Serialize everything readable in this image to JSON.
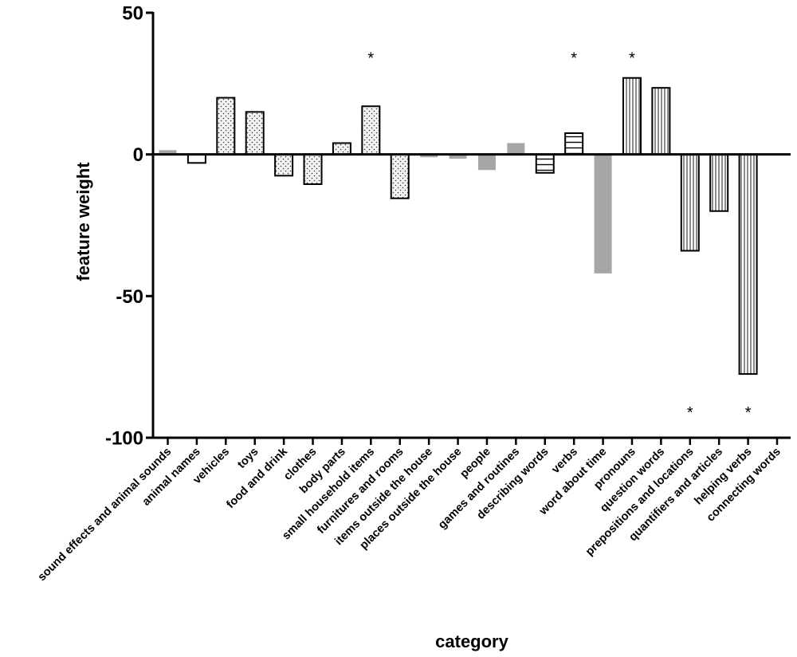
{
  "chart_data": {
    "type": "bar",
    "title": "",
    "xlabel": "category",
    "ylabel": "feature weight",
    "ylim": [
      -100,
      50
    ],
    "yticks": [
      50,
      0,
      -50,
      -100
    ],
    "ytick_labels": [
      "50",
      "0",
      "-50",
      "-100"
    ],
    "grid": false,
    "categories": [
      "sound effects and animal sounds",
      "animal names",
      "vehicles",
      "toys",
      "food and drink",
      "clothes",
      "body parts",
      "small household items",
      "furnitures and rooms",
      "items outside the house",
      "places outside the house",
      "people",
      "games and routines",
      "describing words",
      "verbs",
      "word about time",
      "pronouns",
      "question words",
      "prepositions and locations",
      "quantifiers and articles",
      "helping verbs",
      "connecting words"
    ],
    "values": [
      1.5,
      -3,
      20,
      15,
      -7.5,
      -10.5,
      4,
      17,
      -15.5,
      -1,
      -1.5,
      -5.5,
      4,
      -6.5,
      7.5,
      -42,
      27,
      23.5,
      -34,
      -20,
      -77.5,
      0
    ],
    "patterns": [
      "gray",
      "plain",
      "dots",
      "dots",
      "dots",
      "dots",
      "dots",
      "dots",
      "dots",
      "gray",
      "gray",
      "gray",
      "gray",
      "hlines",
      "hlines",
      "gray",
      "vlines",
      "vlines",
      "vlines",
      "vlines",
      "vlines",
      "plain"
    ],
    "annotations": [
      {
        "category": "small household items",
        "text": "*",
        "value": 36
      },
      {
        "category": "verbs",
        "text": "*",
        "value": 36
      },
      {
        "category": "pronouns",
        "text": "*",
        "value": 36
      },
      {
        "category": "prepositions and locations",
        "text": "*",
        "value": -89
      },
      {
        "category": "helping verbs",
        "text": "*",
        "value": -89
      }
    ]
  }
}
